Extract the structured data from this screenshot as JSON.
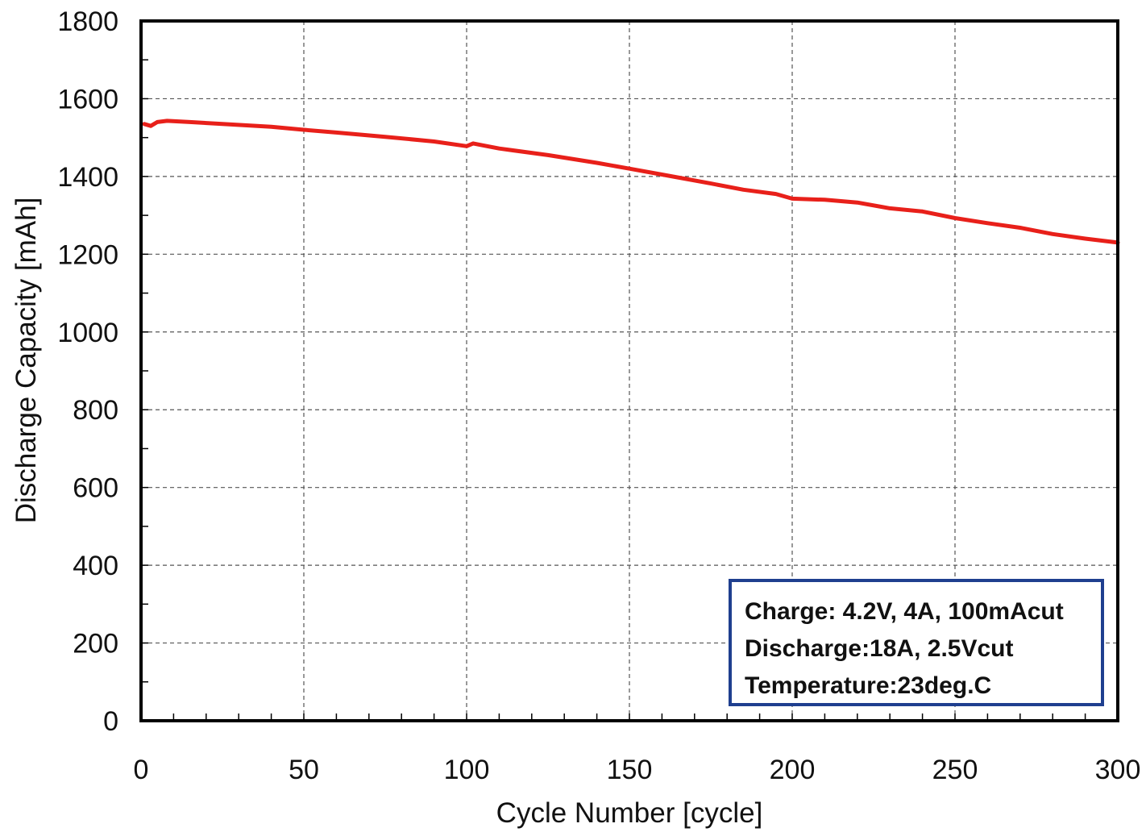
{
  "chart_data": {
    "type": "line",
    "title": "",
    "xlabel": "Cycle Number [cycle]",
    "ylabel": "Discharge Capacity [mAh]",
    "xlim": [
      0,
      300
    ],
    "ylim": [
      0,
      1800
    ],
    "xticks": [
      0,
      50,
      100,
      150,
      200,
      250,
      300
    ],
    "yticks": [
      0,
      200,
      400,
      600,
      800,
      1000,
      1200,
      1400,
      1600,
      1800
    ],
    "xtick_labels": [
      "0",
      "50",
      "100",
      "150",
      "200",
      "250",
      "300"
    ],
    "ytick_labels": [
      "0",
      "200",
      "400",
      "600",
      "800",
      "1000",
      "1200",
      "1400",
      "1600",
      "1800"
    ],
    "grid": true,
    "series": [
      {
        "color": "#e8201a",
        "x": [
          1,
          3,
          5,
          8,
          15,
          25,
          40,
          50,
          60,
          75,
          90,
          100,
          102,
          105,
          110,
          125,
          140,
          150,
          160,
          175,
          185,
          195,
          200,
          210,
          220,
          230,
          240,
          250,
          260,
          270,
          280,
          290,
          300
        ],
        "y": [
          1535,
          1530,
          1540,
          1543,
          1540,
          1535,
          1528,
          1520,
          1513,
          1502,
          1490,
          1478,
          1485,
          1480,
          1472,
          1455,
          1435,
          1420,
          1405,
          1382,
          1366,
          1355,
          1343,
          1340,
          1333,
          1318,
          1310,
          1293,
          1280,
          1268,
          1252,
          1240,
          1230
        ]
      }
    ],
    "annotations": [
      "Charge: 4.2V, 4A, 100mAcut",
      "Discharge:18A, 2.5Vcut",
      "Temperature:23deg.C"
    ],
    "annotation_border_color": "#1f3f8f"
  }
}
